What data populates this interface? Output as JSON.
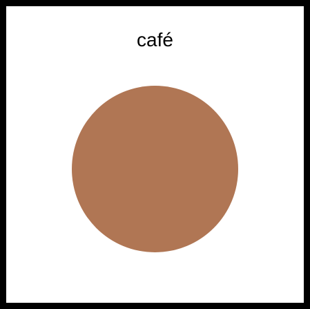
{
  "label": "café",
  "colors": {
    "frame": "#000000",
    "background": "#ffffff",
    "swatch": "#b07654"
  },
  "shape": "circle"
}
